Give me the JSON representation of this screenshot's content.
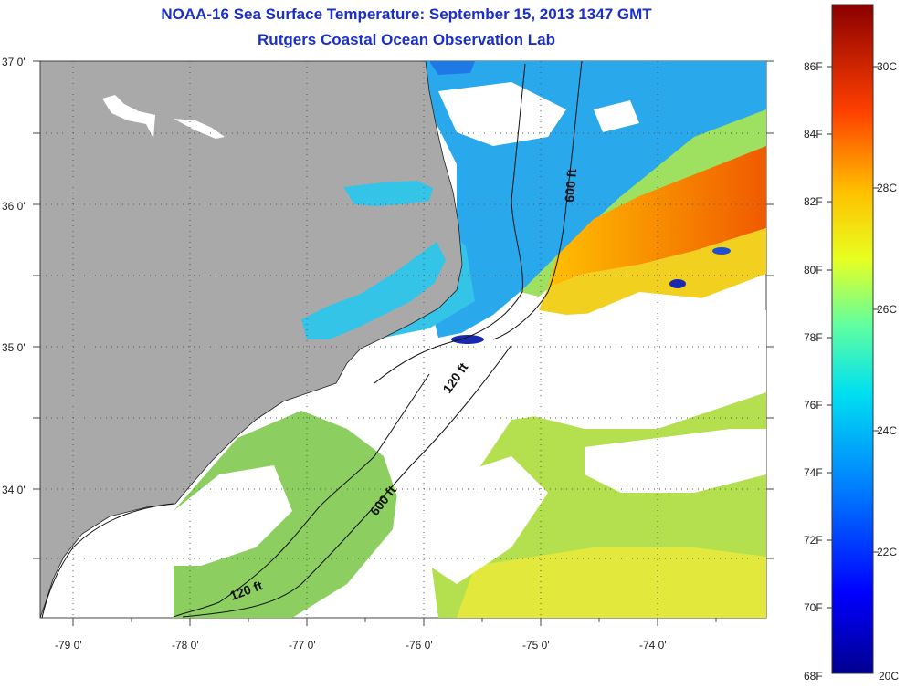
{
  "header": {
    "title": "NOAA-16 Sea Surface Temperature:  September 15, 2013 1347 GMT",
    "subtitle": "Rutgers Coastal Ocean Observation Lab"
  },
  "axes": {
    "lat_labels": [
      "37 0'",
      "36 0'",
      "35 0'",
      "34 0'"
    ],
    "lon_labels": [
      "-79 0'",
      "-78 0'",
      "-77 0'",
      "-76 0'",
      "-75 0'",
      "-74 0'"
    ]
  },
  "contours": {
    "c1": "600 ft",
    "c2": "120 ft",
    "c3": "600 ft",
    "c4": "120 ft"
  },
  "colorbar": {
    "fahrenheit": [
      "86F",
      "84F",
      "82F",
      "80F",
      "78F",
      "76F",
      "74F",
      "72F",
      "70F",
      "68F"
    ],
    "celsius": [
      "30C",
      "28C",
      "26C",
      "24C",
      "22C",
      "20C"
    ]
  },
  "colors": {
    "land": "#a9a9a9",
    "cloud": "#ffffff",
    "title": "#1a2fc8"
  }
}
